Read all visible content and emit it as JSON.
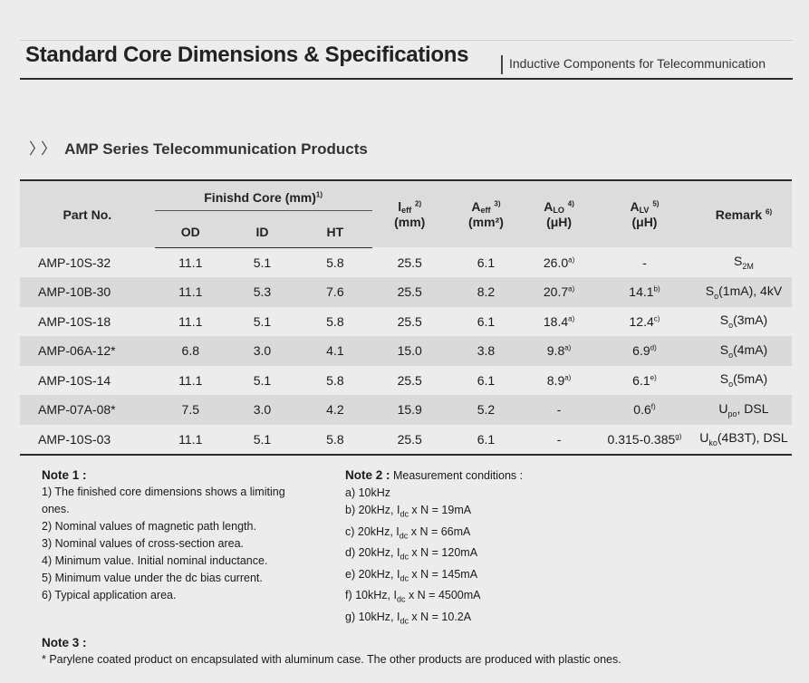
{
  "page": {
    "title": "Standard Core Dimensions & Specifications",
    "subtitle": "Inductive Components for Telecommunication",
    "section_title": "AMP Series Telecommunication Products",
    "section_marker": "〉〉"
  },
  "table": {
    "headers": {
      "part_no": "Part No.",
      "finished_core": "Finishd Core (mm)",
      "finished_core_note": "1)",
      "od": "OD",
      "id": "ID",
      "ht": "HT",
      "leff_sym": "l",
      "leff_sub": "eff",
      "leff_note": "2)",
      "leff_unit": "(mm)",
      "aeff_sym": "A",
      "aeff_sub": "eff",
      "aeff_note": "3)",
      "aeff_unit": "(mm²)",
      "alo_sym": "A",
      "alo_sub": "LO",
      "alo_note": "4)",
      "alo_unit": "(μH)",
      "alv_sym": "A",
      "alv_sub": "LV",
      "alv_note": "5)",
      "alv_unit": "(μH)",
      "remark": "Remark",
      "remark_note": "6)"
    },
    "rows": [
      {
        "part": "AMP-10S-32",
        "od": "11.1",
        "id": "5.1",
        "ht": "5.8",
        "leff": "25.5",
        "aeff": "6.1",
        "alo": "26.0",
        "alo_note": "a)",
        "alv": "-",
        "alv_note": "",
        "remark_main": "S",
        "remark_sub": "2M",
        "remark_tail": ""
      },
      {
        "part": "AMP-10B-30",
        "od": "11.1",
        "id": "5.3",
        "ht": "7.6",
        "leff": "25.5",
        "aeff": "8.2",
        "alo": "20.7",
        "alo_note": "a)",
        "alv": "14.1",
        "alv_note": "b)",
        "remark_main": "S",
        "remark_sub": "o",
        "remark_tail": "(1mA), 4kV"
      },
      {
        "part": "AMP-10S-18",
        "od": "11.1",
        "id": "5.1",
        "ht": "5.8",
        "leff": "25.5",
        "aeff": "6.1",
        "alo": "18.4",
        "alo_note": "a)",
        "alv": "12.4",
        "alv_note": "c)",
        "remark_main": "S",
        "remark_sub": "o",
        "remark_tail": "(3mA)"
      },
      {
        "part": "AMP-06A-12*",
        "od": "6.8",
        "id": "3.0",
        "ht": "4.1",
        "leff": "15.0",
        "aeff": "3.8",
        "alo": "9.8",
        "alo_note": "a)",
        "alv": "6.9",
        "alv_note": "d)",
        "remark_main": "S",
        "remark_sub": "o",
        "remark_tail": "(4mA)"
      },
      {
        "part": "AMP-10S-14",
        "od": "11.1",
        "id": "5.1",
        "ht": "5.8",
        "leff": "25.5",
        "aeff": "6.1",
        "alo": "8.9",
        "alo_note": "a)",
        "alv": "6.1",
        "alv_note": "e)",
        "remark_main": "S",
        "remark_sub": "o",
        "remark_tail": "(5mA)"
      },
      {
        "part": "AMP-07A-08*",
        "od": "7.5",
        "id": "3.0",
        "ht": "4.2",
        "leff": "15.9",
        "aeff": "5.2",
        "alo": "-",
        "alo_note": "",
        "alv": "0.6",
        "alv_note": "f)",
        "remark_main": "U",
        "remark_sub": "po",
        "remark_tail": ", DSL"
      },
      {
        "part": "AMP-10S-03",
        "od": "11.1",
        "id": "5.1",
        "ht": "5.8",
        "leff": "25.5",
        "aeff": "6.1",
        "alo": "-",
        "alo_note": "",
        "alv": "0.315-0.385",
        "alv_note": "g)",
        "remark_main": "U",
        "remark_sub": "ko",
        "remark_tail": "(4B3T), DSL"
      }
    ]
  },
  "note1": {
    "heading": "Note 1 :",
    "lines": [
      "1) The finished core dimensions shows a limiting",
      "ones.",
      "2) Nominal values of magnetic path length.",
      "3) Nominal values of cross-section area.",
      "4) Minimum value. Initial nominal inductance.",
      "5)  Minimum value under the dc bias current.",
      "6) Typical application area."
    ]
  },
  "note2": {
    "heading": "Note 2 :",
    "heading_tail": " Measurement conditions :",
    "first": "a) 10kHz",
    "lines": [
      {
        "pre": "b) 20kHz, I",
        "sub": "dc",
        "post": " x N = 19mA"
      },
      {
        "pre": "c) 20kHz, I",
        "sub": "dc",
        "post": " x N = 66mA"
      },
      {
        "pre": "d) 20kHz, I",
        "sub": "dc",
        "post": " x N = 120mA"
      },
      {
        "pre": "e) 20kHz, I",
        "sub": "dc",
        "post": " x N = 145mA"
      },
      {
        "pre": "f) 10kHz, I",
        "sub": "dc",
        "post": " x N = 4500mA"
      },
      {
        "pre": "g) 10kHz, I",
        "sub": "dc",
        "post": " x N = 10.2A"
      }
    ]
  },
  "note3": {
    "heading": "Note 3 :",
    "text": "* Parylene coated product on encapsulated with aluminum case. The other products are produced with plastic ones."
  }
}
